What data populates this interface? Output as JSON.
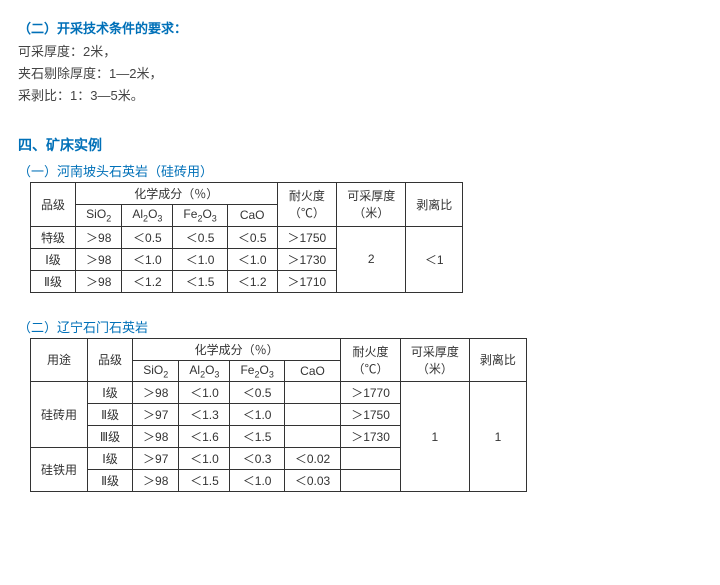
{
  "section1": {
    "heading": "（二）开采技术条件的要求：",
    "lines": [
      "可采厚度：2米，",
      "夹石剔除厚度：1—2米，",
      "采剥比：1：3—5米。"
    ]
  },
  "section2": {
    "title": "四、矿床实例",
    "sub1": {
      "heading": "（一）河南坡头石英岩（硅砖用）",
      "header_grade": "品级",
      "header_chem": "化学成分（％）",
      "header_fire": "耐火度",
      "header_fire_unit": "（℃）",
      "header_thick": "可采厚度",
      "header_thick_unit": "（米）",
      "header_strip": "剥离比",
      "cols": [
        "SiO₂",
        "Al₂O₃",
        "Fe₂O₃",
        "CaO"
      ],
      "rows": [
        {
          "grade": "特级",
          "sio2": "＞98",
          "al2o3": "＜0.5",
          "fe2o3": "＜0.5",
          "cao": "＜0.5",
          "fire": "＞1750"
        },
        {
          "grade": "Ⅰ级",
          "sio2": "＞98",
          "al2o3": "＜1.0",
          "fe2o3": "＜1.0",
          "cao": "＜1.0",
          "fire": "＞1730"
        },
        {
          "grade": "Ⅱ级",
          "sio2": "＞98",
          "al2o3": "＜1.2",
          "fe2o3": "＜1.5",
          "cao": "＜1.2",
          "fire": "＞1710"
        }
      ],
      "thick_val": "2",
      "strip_val": "＜1"
    },
    "sub2": {
      "heading": "（二）辽宁石门石英岩",
      "header_use": "用途",
      "header_grade": "品级",
      "header_chem": "化学成分（％）",
      "header_fire": "耐火度",
      "header_fire_unit": "（℃）",
      "header_thick": "可采厚度",
      "header_thick_unit": "（米）",
      "header_strip": "剥离比",
      "cols": [
        "SiO₂",
        "Al₂O₃",
        "Fe₂O₃",
        "CaO"
      ],
      "use1": "硅砖用",
      "use2": "硅铁用",
      "rows1": [
        {
          "grade": "Ⅰ级",
          "sio2": "＞98",
          "al2o3": "＜1.0",
          "fe2o3": "＜0.5",
          "cao": "",
          "fire": "＞1770"
        },
        {
          "grade": "Ⅱ级",
          "sio2": "＞97",
          "al2o3": "＜1.3",
          "fe2o3": "＜1.0",
          "cao": "",
          "fire": "＞1750"
        },
        {
          "grade": "Ⅲ级",
          "sio2": "＞98",
          "al2o3": "＜1.6",
          "fe2o3": "＜1.5",
          "cao": "",
          "fire": "＞1730"
        }
      ],
      "rows2": [
        {
          "grade": "Ⅰ级",
          "sio2": "＞97",
          "al2o3": "＜1.0",
          "fe2o3": "＜0.3",
          "cao": "＜0.02",
          "fire": ""
        },
        {
          "grade": "Ⅱ级",
          "sio2": "＞98",
          "al2o3": "＜1.5",
          "fe2o3": "＜1.0",
          "cao": "＜0.03",
          "fire": ""
        }
      ],
      "thick_val": "1",
      "strip_val": "1"
    }
  }
}
